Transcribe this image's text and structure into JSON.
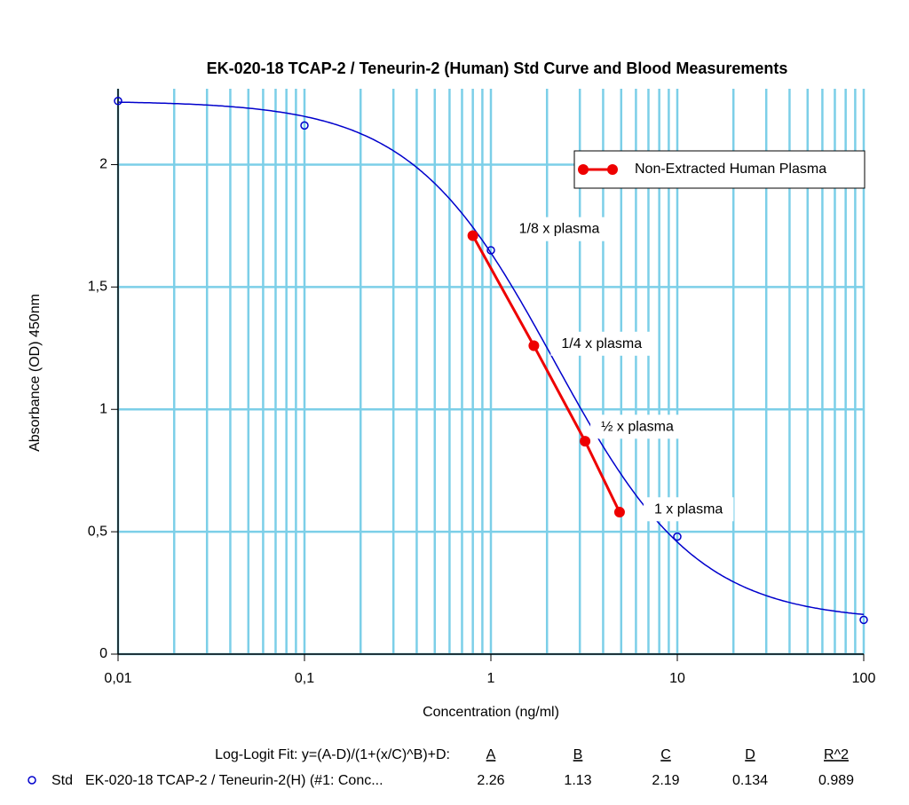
{
  "chart_data": {
    "type": "scatter",
    "title": "EK-020-18 TCAP-2 / Teneurin-2 (Human) Std Curve and Blood Measurements",
    "xlabel": "Concentration (ng/ml)",
    "ylabel": "Absorbance (OD) 450nm",
    "xscale": "log",
    "xlim": [
      0.01,
      100
    ],
    "ylim": [
      0,
      2.31
    ],
    "xticks": [
      {
        "value": 0.01,
        "label": "0,01"
      },
      {
        "value": 0.1,
        "label": "0,1"
      },
      1,
      10,
      100
    ],
    "x_minor_ticks": [
      0.02,
      0.03,
      0.04,
      0.05,
      0.06,
      0.07,
      0.08,
      0.09,
      0.2,
      0.3,
      0.4,
      0.5,
      0.6,
      0.7,
      0.8,
      0.9,
      2,
      3,
      4,
      5,
      6,
      7,
      8,
      9,
      20,
      30,
      40,
      50,
      60,
      70,
      80,
      90
    ],
    "yticks": [
      0,
      {
        "value": 0.5,
        "label": "0,5"
      },
      1,
      {
        "value": 1.5,
        "label": "1,5"
      },
      2
    ],
    "grid": true,
    "grid_color": "#7ccfe8",
    "legend": "upper right",
    "series": [
      {
        "name": "Std",
        "color": "#0000cc",
        "x": [
          0.01,
          0.1,
          1,
          10,
          100
        ],
        "values": [
          2.26,
          2.16,
          1.65,
          0.48,
          0.14
        ]
      },
      {
        "name": "Non-Extracted Human Plasma",
        "color": "#ee0000",
        "x": [
          0.8,
          1.7,
          3.2,
          4.9
        ],
        "values": [
          1.71,
          1.26,
          0.87,
          0.58
        ],
        "point_labels": [
          "1/8  x plasma",
          "1/4  x plasma",
          "½  x plasma",
          "1 x plasma"
        ]
      }
    ],
    "fit": {
      "label": "Log-Logit Fit: y=(A-D)/(1+(x/C)^B)+D:",
      "headers": [
        "A",
        "B",
        "C",
        "D",
        "R^2"
      ],
      "row_name": "EK-020-18 TCAP-2 / Teneurin-2(H) (#1: Conc...",
      "params": [
        2.26,
        1.13,
        2.19,
        0.134,
        0.989
      ]
    }
  }
}
